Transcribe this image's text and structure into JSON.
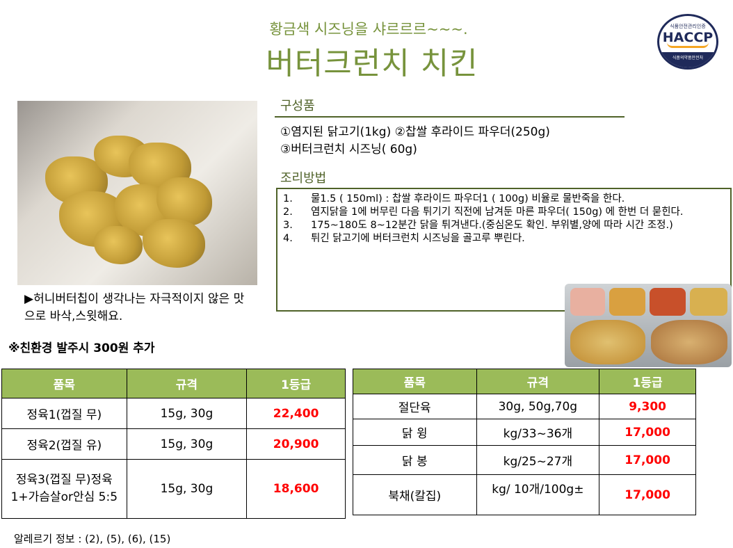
{
  "header": {
    "subtitle": "황금색 시즈닝을 샤르르르~~~.",
    "title": "버터크런치 치킨"
  },
  "logo": {
    "top": "식품안전관리인증",
    "main": "HACCP",
    "bottom": "식품의약품안전처"
  },
  "caption": "▶허니버터칩이 생각나는 자극적이지 않은 맛으로 바삭,스윗해요.",
  "eco_note": "※친환경 발주시 300원 추가",
  "components": {
    "heading": "구성품",
    "line1": "①염지된 닭고기(1kg) ②찹쌀 후라이드 파우더(250g)",
    "line2": "③버터크런치 시즈닝( 60g)"
  },
  "method": {
    "heading": "조리방법",
    "steps": [
      {
        "n": "1.",
        "text": "물1.5 ( 150ml) : 찹쌀 후라이드 파우더1 ( 100g)  비율로 물반죽을  한다."
      },
      {
        "n": "2.",
        "text": "염지닭을 1에 버무린  다음  튀기기  직전에  남겨둔  마른 파우더( 150g) 에  한번 더 묻힌다."
      },
      {
        "n": "3.",
        "text": "175~180도 8~12분간 닭을 튀겨낸다.(중심온도 확인. 부위별,양에  따라 시간 조정.)"
      },
      {
        "n": "4.",
        "text": "튀긴 닭고기에 버터크런치 시즈닝을 골고루 뿌린다."
      }
    ]
  },
  "table1": {
    "headers": [
      "품목",
      "규격",
      "1등급"
    ],
    "rows": [
      [
        "정육1(껍질 무)",
        "15g, 30g",
        "22,400"
      ],
      [
        "정육2(껍질 유)",
        "15g, 30g",
        "20,900"
      ],
      [
        "정육3(껍질 무)정육1+가슴살or안심 5:5",
        "15g, 30g",
        "18,600"
      ]
    ]
  },
  "table2": {
    "headers": [
      "품목",
      "규격",
      "1등급"
    ],
    "rows": [
      [
        "절단육",
        "30g, 50g,70g",
        "9,300"
      ],
      [
        "닭 윙",
        "kg/33~36개",
        "17,000"
      ],
      [
        "닭 봉",
        "kg/25~27개",
        "17,000"
      ],
      [
        "북채(칼집)",
        "kg/ 10개/100g±",
        "17,000"
      ]
    ]
  },
  "allergy": "알레르기 정보 : (2), (5), (6), (15)",
  "colors": {
    "title": "#77933c",
    "table_header": "#9bbb59",
    "price": "#ff0000",
    "box_border": "#4f6228"
  }
}
